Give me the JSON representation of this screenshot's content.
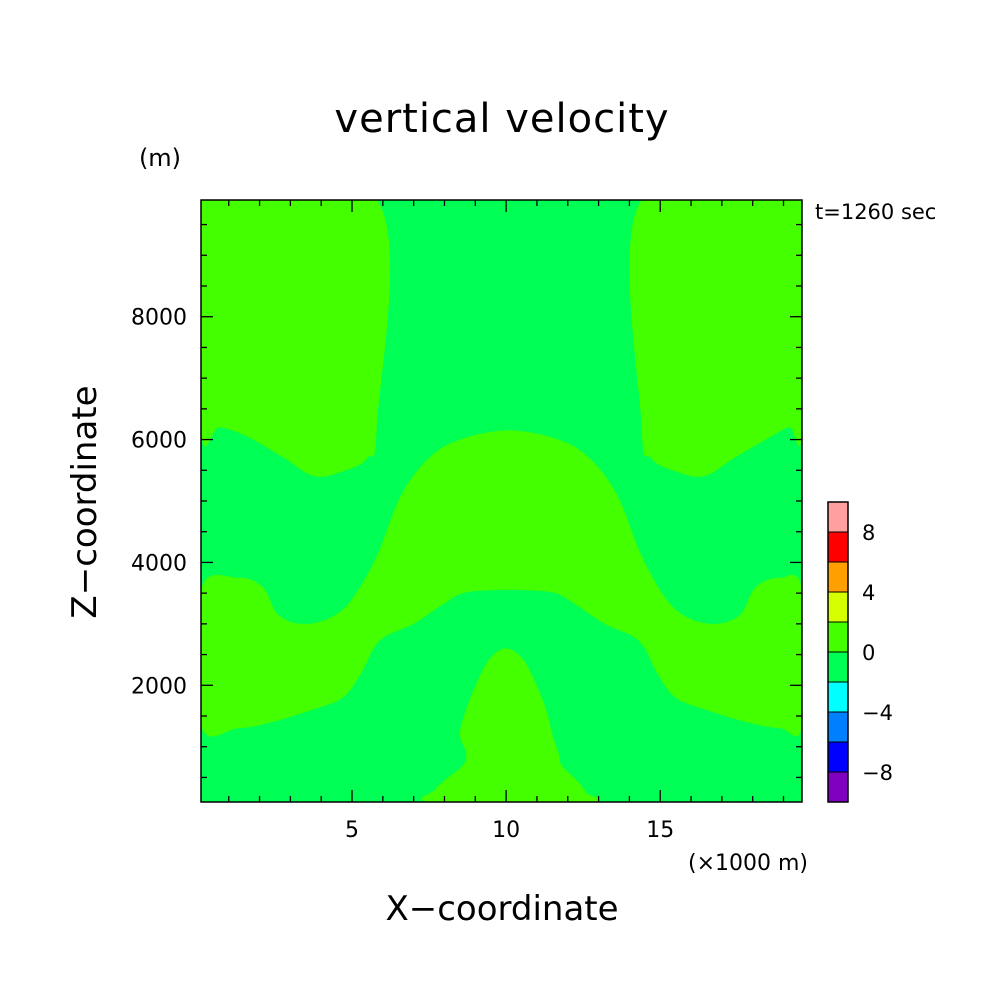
{
  "chart_data": {
    "type": "heatmap",
    "title": "vertical velocity",
    "xlabel": "X−coordinate",
    "ylabel": "Z−coordinate",
    "x_unit": "(×1000 m)",
    "y_unit": "(m)",
    "time_label": "t=1260 sec",
    "xlim": [
      0.1,
      19.6
    ],
    "ylim": [
      100,
      9900
    ],
    "x_tick_labels": [
      {
        "value": 5,
        "label": "5"
      },
      {
        "value": 10,
        "label": "10"
      },
      {
        "value": 15,
        "label": "15"
      }
    ],
    "y_tick_labels": [
      {
        "value": 2000,
        "label": "2000"
      },
      {
        "value": 4000,
        "label": "4000"
      },
      {
        "value": 6000,
        "label": "6000"
      },
      {
        "value": 8000,
        "label": "8000"
      }
    ],
    "colorbar": {
      "levels": [
        {
          "range": [
            -10,
            -8
          ],
          "color": "#7f00bf"
        },
        {
          "range": [
            -8,
            -6
          ],
          "color": "#0000ff"
        },
        {
          "range": [
            -6,
            -4
          ],
          "color": "#0080ff"
        },
        {
          "range": [
            -4,
            -2
          ],
          "color": "#00ffff"
        },
        {
          "range": [
            -2,
            0
          ],
          "color": "#00ff55"
        },
        {
          "range": [
            0,
            2
          ],
          "color": "#44ff00"
        },
        {
          "range": [
            2,
            4
          ],
          "color": "#d5ff00"
        },
        {
          "range": [
            4,
            6
          ],
          "color": "#ff9f00"
        },
        {
          "range": [
            6,
            8
          ],
          "color": "#ff0000"
        },
        {
          "range": [
            8,
            10
          ],
          "color": "#ff9f9f"
        }
      ],
      "tick_labels": [
        {
          "value": -8,
          "label": "−8"
        },
        {
          "value": -4,
          "label": "−4"
        },
        {
          "value": 0,
          "label": "0"
        },
        {
          "value": 4,
          "label": "4"
        },
        {
          "value": 8,
          "label": "8"
        }
      ]
    },
    "field": {
      "background_color": "#00ff55",
      "positive_regions_color": "#44ff00",
      "positive_regions": [
        {
          "name": "upper-left-updraft",
          "points": [
            [
              0.1,
              9900
            ],
            [
              5.8,
              9900
            ],
            [
              5.8,
              6200
            ],
            [
              5.5,
              5700
            ],
            [
              4.8,
              5500
            ],
            [
              3.8,
              5400
            ],
            [
              2.8,
              5700
            ],
            [
              1.6,
              6050
            ],
            [
              0.7,
              6200
            ],
            [
              0.1,
              6150
            ]
          ]
        },
        {
          "name": "upper-right-updraft",
          "points": [
            [
              19.6,
              9900
            ],
            [
              14.4,
              9900
            ],
            [
              14.4,
              6200
            ],
            [
              14.7,
              5700
            ],
            [
              15.4,
              5500
            ],
            [
              16.4,
              5400
            ],
            [
              17.4,
              5700
            ],
            [
              18.6,
              6050
            ],
            [
              19.2,
              6200
            ],
            [
              19.6,
              6150
            ]
          ]
        },
        {
          "name": "central-band",
          "points": [
            [
              0.1,
              3550
            ],
            [
              1.3,
              3750
            ],
            [
              2.1,
              3600
            ],
            [
              2.6,
              3150
            ],
            [
              3.4,
              3000
            ],
            [
              4.3,
              3100
            ],
            [
              5.0,
              3400
            ],
            [
              5.8,
              4100
            ],
            [
              6.6,
              5100
            ],
            [
              7.5,
              5700
            ],
            [
              8.5,
              6000
            ],
            [
              10.1,
              6150
            ],
            [
              11.7,
              6000
            ],
            [
              12.7,
              5700
            ],
            [
              13.6,
              5100
            ],
            [
              14.4,
              4100
            ],
            [
              15.2,
              3400
            ],
            [
              15.9,
              3100
            ],
            [
              16.8,
              3000
            ],
            [
              17.6,
              3150
            ],
            [
              18.1,
              3600
            ],
            [
              18.9,
              3750
            ],
            [
              19.6,
              3550
            ],
            [
              19.6,
              1350
            ],
            [
              18.9,
              1300
            ],
            [
              17.8,
              1400
            ],
            [
              16.5,
              1600
            ],
            [
              15.5,
              1800
            ],
            [
              14.9,
              2200
            ],
            [
              14.5,
              2600
            ],
            [
              14.1,
              2800
            ],
            [
              13.2,
              3000
            ],
            [
              12.3,
              3300
            ],
            [
              11.6,
              3500
            ],
            [
              10.6,
              3550
            ],
            [
              9.6,
              3550
            ],
            [
              8.6,
              3500
            ],
            [
              7.9,
              3300
            ],
            [
              7.0,
              3000
            ],
            [
              6.1,
              2800
            ],
            [
              5.7,
              2600
            ],
            [
              5.3,
              2200
            ],
            [
              4.7,
              1800
            ],
            [
              3.7,
              1600
            ],
            [
              2.4,
              1400
            ],
            [
              1.3,
              1300
            ],
            [
              0.1,
              1350
            ]
          ]
        },
        {
          "name": "bottom-center-plume",
          "points": [
            [
              7.6,
              100
            ],
            [
              7.7,
              300
            ],
            [
              8.0,
              450
            ],
            [
              8.6,
              700
            ],
            [
              8.7,
              900
            ],
            [
              8.5,
              1200
            ],
            [
              8.7,
              1600
            ],
            [
              9.1,
              2100
            ],
            [
              9.5,
              2450
            ],
            [
              10.0,
              2600
            ],
            [
              10.5,
              2450
            ],
            [
              10.9,
              2100
            ],
            [
              11.3,
              1600
            ],
            [
              11.5,
              1200
            ],
            [
              11.7,
              900
            ],
            [
              11.8,
              700
            ],
            [
              12.3,
              450
            ],
            [
              12.6,
              250
            ],
            [
              12.7,
              100
            ]
          ]
        }
      ]
    }
  }
}
